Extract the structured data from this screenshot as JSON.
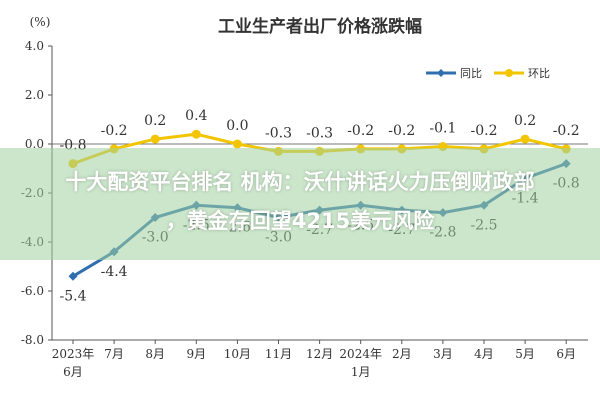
{
  "chart_data": {
    "type": "line",
    "title": "工业生产者出厂价格涨跌幅",
    "unit": "(%)",
    "ylim": [
      -8.0,
      4.0
    ],
    "yticks": [
      "4.0",
      "2.0",
      "0.0",
      "-2.0",
      "-4.0",
      "-6.0",
      "-8.0"
    ],
    "categories": [
      "2023年6月",
      "7月",
      "8月",
      "9月",
      "10月",
      "11月",
      "12月",
      "2024年1月",
      "2月",
      "3月",
      "4月",
      "5月",
      "6月"
    ],
    "tick_labels": [
      [
        "2023年",
        "6月"
      ],
      [
        "7月"
      ],
      [
        "8月"
      ],
      [
        "9月"
      ],
      [
        "10月"
      ],
      [
        "11月"
      ],
      [
        "12月"
      ],
      [
        "2024年",
        "1月"
      ],
      [
        "2月"
      ],
      [
        "3月"
      ],
      [
        "4月"
      ],
      [
        "5月"
      ],
      [
        "6月"
      ]
    ],
    "series": [
      {
        "name": "同比",
        "color": "#2f6fb0",
        "values": [
          -5.4,
          -4.4,
          -3.0,
          -2.5,
          -2.6,
          -3.0,
          -2.7,
          -2.5,
          -2.7,
          -2.8,
          -2.5,
          -1.4,
          -0.8
        ],
        "labels": [
          "-5.4",
          "-4.4",
          "-3.0",
          "-2.5",
          "-2.6",
          "-3.0",
          "-2.7",
          "-2.5",
          "-2.7",
          "-2.8",
          "-2.5",
          "-1.4",
          "-0.8"
        ]
      },
      {
        "name": "环比",
        "color": "#f2c500",
        "values": [
          -0.8,
          -0.2,
          0.2,
          0.4,
          0.0,
          -0.3,
          -0.3,
          -0.2,
          -0.2,
          -0.1,
          -0.2,
          0.2,
          -0.2
        ],
        "labels": [
          "-0.8",
          "-0.2",
          "0.2",
          "0.4",
          "0.0",
          "-0.3",
          "-0.3",
          "-0.2",
          "-0.2",
          "-0.1",
          "-0.2",
          "0.2",
          "-0.2"
        ]
      }
    ],
    "legend": "top-right",
    "grid": false
  },
  "overlay": {
    "line1": "十大配资平台排名 机构：沃什讲话火力压倒财政部",
    "line2": "，黄金存回望4215美元风险"
  }
}
